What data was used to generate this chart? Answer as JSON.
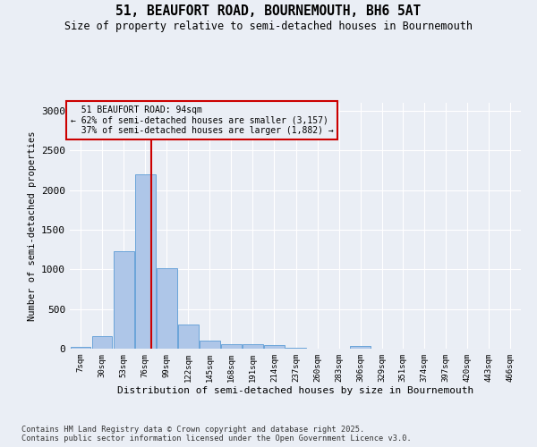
{
  "title_line1": "51, BEAUFORT ROAD, BOURNEMOUTH, BH6 5AT",
  "title_line2": "Size of property relative to semi-detached houses in Bournemouth",
  "xlabel": "Distribution of semi-detached houses by size in Bournemouth",
  "ylabel": "Number of semi-detached properties",
  "property_size": 94,
  "property_label": "51 BEAUFORT ROAD: 94sqm",
  "pct_smaller": 62,
  "n_smaller": 3157,
  "pct_larger": 37,
  "n_larger": 1882,
  "bar_bins": [
    7,
    30,
    53,
    76,
    99,
    122,
    145,
    168,
    191,
    214,
    237,
    260,
    283,
    306,
    329,
    351,
    374,
    397,
    420,
    443,
    466
  ],
  "bar_heights": [
    20,
    160,
    1230,
    2200,
    1020,
    305,
    105,
    60,
    55,
    40,
    15,
    0,
    0,
    30,
    0,
    0,
    0,
    0,
    0,
    0,
    0
  ],
  "bar_color": "#aec6e8",
  "bar_edge_color": "#5b9bd5",
  "vline_x": 94,
  "vline_color": "#cc0000",
  "annotation_box_color": "#cc0000",
  "ylim": [
    0,
    3100
  ],
  "yticks": [
    0,
    500,
    1000,
    1500,
    2000,
    2500,
    3000
  ],
  "bg_color": "#eaeef5",
  "grid_color": "#ffffff",
  "footnote_line1": "Contains HM Land Registry data © Crown copyright and database right 2025.",
  "footnote_line2": "Contains public sector information licensed under the Open Government Licence v3.0."
}
